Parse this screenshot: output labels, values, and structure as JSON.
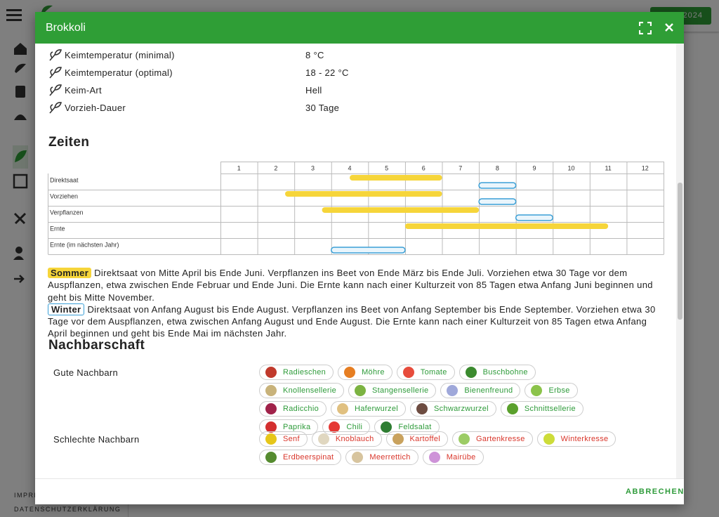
{
  "app": {
    "button": "2024",
    "footer": [
      "IMPRESSUM",
      "DATENSCHUTZERKLÄRUNG"
    ]
  },
  "dialog": {
    "title": "Brokkoli",
    "properties": [
      {
        "label": "Keimtemperatur (minimal)",
        "value": "8 °C"
      },
      {
        "label": "Keimtemperatur (optimal)",
        "value": "18 - 22 °C"
      },
      {
        "label": "Keim-Art",
        "value": "Hell"
      },
      {
        "label": "Vorzieh-Dauer",
        "value": "30 Tage"
      }
    ],
    "timeline": {
      "heading": "Zeiten",
      "months": [
        1,
        2,
        3,
        4,
        5,
        6,
        7,
        8,
        9,
        10,
        11,
        12
      ],
      "rows": [
        {
          "name": "Direktsaat",
          "periods": [
            {
              "season": "Sommer",
              "start": 4.5,
              "end": 7
            },
            {
              "season": "Winter",
              "start": 8,
              "end": 9
            }
          ]
        },
        {
          "name": "Vorziehen",
          "periods": [
            {
              "season": "Sommer",
              "start": 2.75,
              "end": 7
            },
            {
              "season": "Winter",
              "start": 8,
              "end": 9
            }
          ]
        },
        {
          "name": "Verpflanzen",
          "periods": [
            {
              "season": "Sommer",
              "start": 3.75,
              "end": 8
            },
            {
              "season": "Winter",
              "start": 9,
              "end": 10
            }
          ]
        },
        {
          "name": "Ernte",
          "periods": [
            {
              "season": "Sommer",
              "start": 6,
              "end": 11.5
            }
          ]
        },
        {
          "name": "Ernte (im nächsten Jahr)",
          "periods": [
            {
              "season": "Winter",
              "start": 4,
              "end": 6
            }
          ]
        }
      ]
    },
    "seasons": [
      {
        "name": "Sommer",
        "text": "Direktsaat von Mitte April bis Ende Juni. Verpflanzen ins Beet von Ende März bis Ende Juli. Vorziehen etwa 30 Tage vor dem Auspflanzen, etwa zwischen Ende Februar und Ende Juni. Die Ernte kann nach einer Kulturzeit von 85 Tagen etwa Anfang Juni beginnen und geht bis Mitte November."
      },
      {
        "name": "Winter",
        "text": "Direktsaat von Anfang August bis Ende August. Verpflanzen ins Beet von Anfang September bis Ende September. Vorziehen etwa 30 Tage vor dem Auspflanzen, etwa zwischen Anfang August und Ende August. Die Ernte kann nach einer Kulturzeit von 85 Tagen etwa Anfang April beginnen und geht bis Ende Mai im nächsten Jahr."
      }
    ],
    "neighbors": {
      "heading": "Nachbarschaft",
      "groups": [
        {
          "label": "Gute Nachbarn",
          "plants": [
            {
              "name": "Radieschen",
              "color": "#c0392b"
            },
            {
              "name": "Möhre",
              "color": "#e67e22"
            },
            {
              "name": "Tomate",
              "color": "#e74c3c"
            },
            {
              "name": "Buschbohne",
              "color": "#3b8a2e"
            },
            {
              "name": "Knollensellerie",
              "color": "#c8b27a"
            },
            {
              "name": "Stangensellerie",
              "color": "#7cb342"
            },
            {
              "name": "Bienenfreund",
              "color": "#9fa8da"
            },
            {
              "name": "Erbse",
              "color": "#8bc34a"
            },
            {
              "name": "Radicchio",
              "color": "#a0224a"
            },
            {
              "name": "Haferwurzel",
              "color": "#e0c080"
            },
            {
              "name": "Schwarzwurzel",
              "color": "#6d4c41"
            },
            {
              "name": "Schnittsellerie",
              "color": "#5aa02c"
            },
            {
              "name": "Paprika",
              "color": "#d32f2f"
            },
            {
              "name": "Chili",
              "color": "#e53935"
            },
            {
              "name": "Feldsalat",
              "color": "#2e7d32"
            }
          ]
        },
        {
          "label": "Schlechte Nachbarn",
          "plants": [
            {
              "name": "Senf",
              "color": "#e6c619"
            },
            {
              "name": "Knoblauch",
              "color": "#e0d7c0"
            },
            {
              "name": "Kartoffel",
              "color": "#c9a25e"
            },
            {
              "name": "Gartenkresse",
              "color": "#9ccc65"
            },
            {
              "name": "Winterkresse",
              "color": "#cddc39"
            },
            {
              "name": "Erdbeerspinat",
              "color": "#558b2f"
            },
            {
              "name": "Meerrettich",
              "color": "#d7c49e"
            },
            {
              "name": "Mairübe",
              "color": "#ce93d8"
            }
          ]
        }
      ]
    },
    "cancel": "ABBRECHEN"
  }
}
